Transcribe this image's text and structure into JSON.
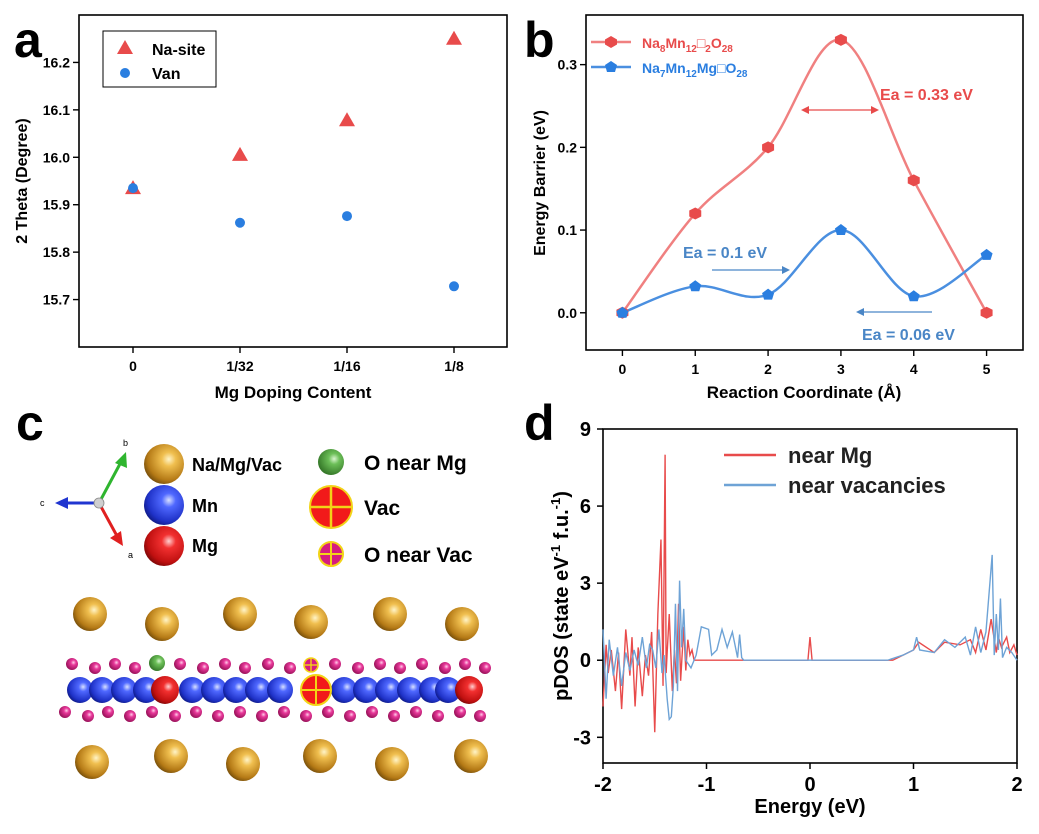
{
  "colors": {
    "red": "#e84b4b",
    "blue": "#2a7ee0",
    "dblue": "#4a86c6",
    "na": "#d49624",
    "mn": "#2741d8",
    "mg": "#e01b1b",
    "onear": "#5bb44c",
    "oatom": "#d61c7e",
    "vac": "#f21a1a",
    "vacline": "#f2d417"
  },
  "panel_letters": {
    "a": "a",
    "b": "b",
    "c": "c",
    "d": "d"
  },
  "chart_data": [
    {
      "panel": "a",
      "type": "scatter",
      "xlabel": "Mg Doping Content",
      "ylabel": "2 Theta (Degree)",
      "categories": [
        "0",
        "1/32",
        "1/16",
        "1/8"
      ],
      "ylim": [
        15.6,
        16.3
      ],
      "yticks": [
        "15.7",
        "15.8",
        "15.9",
        "16.0",
        "16.1",
        "16.2"
      ],
      "legend_position": "top-left",
      "series": [
        {
          "name": "Na-site",
          "marker": "triangle",
          "values": [
            15.935,
            16.005,
            16.078,
            16.25
          ]
        },
        {
          "name": "Van",
          "marker": "circle",
          "values": [
            15.935,
            15.862,
            15.876,
            15.728
          ]
        }
      ]
    },
    {
      "panel": "b",
      "type": "line",
      "xlabel": "Reaction Coordinate (Å)",
      "ylabel": "Energy Barrier (eV)",
      "x": [
        0,
        1,
        2,
        3,
        4,
        5
      ],
      "xlim": [
        -0.5,
        5.5
      ],
      "ylim": [
        -0.045,
        0.36
      ],
      "xticks": [
        "0",
        "1",
        "2",
        "3",
        "4",
        "5"
      ],
      "yticks": [
        "0.0",
        "0.1",
        "0.2",
        "0.3"
      ],
      "legend_position": "top-left",
      "series": [
        {
          "name": "Na8Mn12□2O28",
          "values": [
            0.0,
            0.12,
            0.2,
            0.33,
            0.16,
            0.0
          ]
        },
        {
          "name": "Na7Mn12Mg□O28",
          "values": [
            0.0,
            0.032,
            0.022,
            0.1,
            0.02,
            0.07
          ]
        }
      ],
      "legend_parts": [
        {
          "n1": "Na",
          "s1": "8",
          "n2": "Mn",
          "s2": "12",
          "n3": "□",
          "s3": "2",
          "n4": "O",
          "s4": "28"
        },
        {
          "n1": "Na",
          "s1": "7",
          "n2": "Mn",
          "s2": "12",
          "n3": "Mg□O",
          "s3": "28"
        }
      ],
      "annotations": [
        "Ea = 0.33 eV",
        "Ea = 0.1 eV",
        "Ea = 0.06 eV"
      ]
    },
    {
      "panel": "d",
      "type": "line",
      "xlabel": "Energy (eV)",
      "ylabel_parts": {
        "main": "pDOS (state eV",
        "sup1": "-1",
        "mid": " f.u.",
        "sup2": "-1",
        "end": ")"
      },
      "xlim": [
        -2,
        2
      ],
      "ylim": [
        -4,
        9
      ],
      "xticks": [
        "-2",
        "-1",
        "0",
        "1",
        "2"
      ],
      "yticks": [
        "-3",
        "0",
        "3",
        "6",
        "9"
      ],
      "legend_position": "top-right",
      "series": [
        {
          "name": "near Mg",
          "x": [
            -2.0,
            -1.97,
            -1.95,
            -1.92,
            -1.88,
            -1.85,
            -1.82,
            -1.78,
            -1.74,
            -1.72,
            -1.69,
            -1.66,
            -1.62,
            -1.59,
            -1.56,
            -1.53,
            -1.5,
            -1.47,
            -1.44,
            -1.42,
            -1.4,
            -1.39,
            -1.38,
            -1.36,
            -1.33,
            -1.31,
            -1.29,
            -1.27,
            -1.25,
            -1.22,
            -1.2,
            -1.18,
            -1.16,
            -1.14,
            -1.12,
            -1.0,
            -0.02,
            0.0,
            0.02,
            0.8,
            1.0,
            1.05,
            1.2,
            1.3,
            1.45,
            1.55,
            1.6,
            1.65,
            1.7,
            1.75,
            1.8,
            1.82,
            1.85,
            1.9,
            1.93,
            1.97,
            2.0
          ],
          "values": [
            -1.8,
            0.6,
            -0.5,
            0.4,
            -1.2,
            0.3,
            -1.9,
            1.2,
            -0.6,
            0.9,
            -1.8,
            0.5,
            -1.4,
            0.2,
            -0.6,
            1.1,
            -2.8,
            1.8,
            4.7,
            -1.0,
            8.0,
            -0.5,
            0.3,
            1.8,
            -1.2,
            0.4,
            -0.9,
            2.2,
            -0.8,
            1.3,
            -0.4,
            0.8,
            0.2,
            0.4,
            0.0,
            0.0,
            0.0,
            0.9,
            0.0,
            0.0,
            0.4,
            0.7,
            0.3,
            0.7,
            0.6,
            0.8,
            0.3,
            1.2,
            0.4,
            1.6,
            0.3,
            0.9,
            0.5,
            0.9,
            0.3,
            0.6,
            0.2
          ]
        },
        {
          "name": "near vacancies",
          "x": [
            -2.0,
            -1.97,
            -1.94,
            -1.9,
            -1.86,
            -1.82,
            -1.78,
            -1.74,
            -1.7,
            -1.66,
            -1.62,
            -1.58,
            -1.55,
            -1.52,
            -1.49,
            -1.46,
            -1.43,
            -1.41,
            -1.38,
            -1.36,
            -1.34,
            -1.32,
            -1.3,
            -1.28,
            -1.26,
            -1.24,
            -1.22,
            -1.2,
            -1.15,
            -1.1,
            -1.05,
            -0.98,
            -0.95,
            -0.9,
            -0.85,
            -0.8,
            -0.75,
            -0.7,
            -0.68,
            -0.66,
            -0.64,
            0.75,
            0.9,
            1.0,
            1.03,
            1.06,
            1.2,
            1.3,
            1.4,
            1.5,
            1.55,
            1.6,
            1.65,
            1.7,
            1.76,
            1.78,
            1.8,
            1.82,
            1.84,
            1.86,
            1.9,
            1.95,
            2.0
          ],
          "values": [
            1.2,
            -1.5,
            0.8,
            -0.6,
            0.5,
            -1.0,
            0.3,
            -0.4,
            0.4,
            -0.2,
            0.9,
            -0.3,
            0.6,
            0.4,
            -0.3,
            1.2,
            -0.5,
            0.2,
            -1.5,
            -2.3,
            -2.2,
            -1.0,
            2.2,
            -1.2,
            3.1,
            0.5,
            2.0,
            0.0,
            -0.3,
            0.2,
            1.3,
            1.2,
            0.2,
            0.4,
            1.2,
            0.5,
            1.1,
            0.1,
            1.0,
            0.1,
            0.0,
            0.0,
            0.2,
            0.4,
            0.9,
            0.4,
            0.3,
            0.8,
            0.5,
            0.9,
            0.2,
            1.3,
            0.3,
            1.1,
            4.1,
            0.2,
            1.8,
            0.4,
            2.4,
            0.1,
            0.5,
            0.3,
            0.0
          ]
        }
      ]
    }
  ],
  "panel_c": {
    "axes": {
      "b": "b",
      "c": "c",
      "a": "a"
    },
    "legend": [
      {
        "label": "Na/Mg/Vac",
        "type": "na"
      },
      {
        "label": "Mn",
        "type": "mn"
      },
      {
        "label": "Mg",
        "type": "mg"
      },
      {
        "label": "O near Mg",
        "type": "onear"
      },
      {
        "label": "Vac",
        "type": "vac"
      },
      {
        "label": "O near Vac",
        "type": "ovac"
      }
    ]
  }
}
